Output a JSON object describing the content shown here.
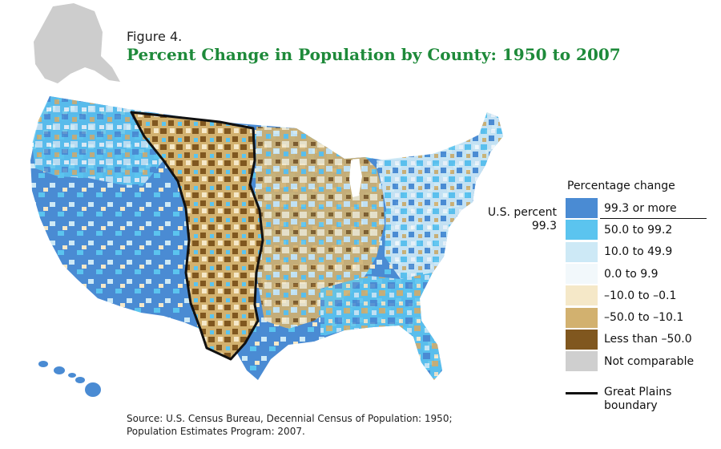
{
  "figure": {
    "label": "Figure 4.",
    "title": "Percent Change in Population by County: 1950 to 2007"
  },
  "legend": {
    "title": "Percentage change",
    "items": [
      {
        "label": "99.3 or more",
        "color": "#4a8bd3"
      },
      {
        "label": "50.0 to 99.2",
        "color": "#5bc4ef"
      },
      {
        "label": "10.0 to 49.9",
        "color": "#cde9f6"
      },
      {
        "label": "0.0 to 9.9",
        "color": "#f2f8fb"
      },
      {
        "label": "–10.0 to –0.1",
        "color": "#f5e8c8"
      },
      {
        "label": "–50.0 to –10.1",
        "color": "#d2b16f"
      },
      {
        "label": "Less than –50.0",
        "color": "#80571f"
      },
      {
        "label": "Not comparable",
        "color": "#cfcfcf"
      }
    ],
    "us_percent_label": "U.S. percent",
    "us_percent_value": "99.3",
    "boundary_label": "Great Plains boundary"
  },
  "source": {
    "line1": "Source: U.S. Census Bureau, Decennial Census of Population: 1950;",
    "line2": "Population Estimates Program: 2007."
  },
  "colors": {
    "alaska": "#cdcdcd",
    "boundary": "#111111",
    "title": "#1e8a3a"
  }
}
